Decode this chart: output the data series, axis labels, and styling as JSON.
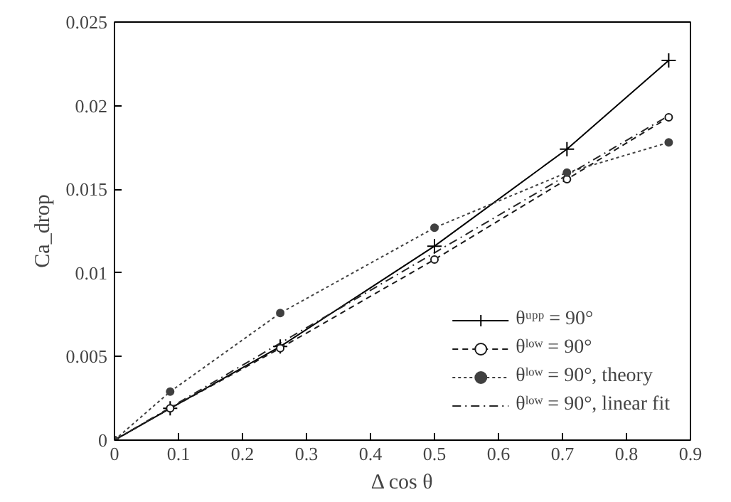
{
  "chart_data": {
    "type": "line",
    "xlabel": "Δ cos θ",
    "ylabel": "Ca_drop",
    "xlim": [
      0,
      0.9
    ],
    "xticks": [
      0,
      0.1,
      0.2,
      0.3,
      0.4,
      0.5,
      0.6,
      0.7,
      0.8,
      0.9
    ],
    "ylim": [
      0,
      0.025
    ],
    "yticks": [
      0,
      0.005,
      0.01,
      0.015,
      0.02,
      0.025
    ],
    "x": [
      0,
      0.087,
      0.259,
      0.5,
      0.707,
      0.866
    ],
    "series": [
      {
        "name": "θᵘᵖᵖ = 90°",
        "color": "#000000",
        "marker": "cross",
        "line_style": "solid",
        "values": [
          0,
          0.0019,
          0.0056,
          0.0116,
          0.0174,
          0.0227
        ]
      },
      {
        "name": "θˡᵒʷ = 90°",
        "color": "#1a1a1a",
        "marker": "circle",
        "line_style": "dashed",
        "values": [
          0,
          0.0019,
          0.0055,
          0.0108,
          0.0156,
          0.0193
        ]
      },
      {
        "name": "θˡᵒʷ = 90°, theory",
        "color": "#404040",
        "marker": "circle",
        "line_style": "dotted",
        "values": [
          0,
          0.0029,
          0.0076,
          0.0127,
          0.016,
          0.0178
        ]
      },
      {
        "name": "θˡᵒʷ = 90°, linear fit",
        "color": "#262626",
        "marker": "none",
        "line_style": "dashdot",
        "x": [
          0,
          0.866
        ],
        "values": [
          0,
          0.0194
        ]
      }
    ],
    "legend": "bottom right",
    "grid": false
  }
}
